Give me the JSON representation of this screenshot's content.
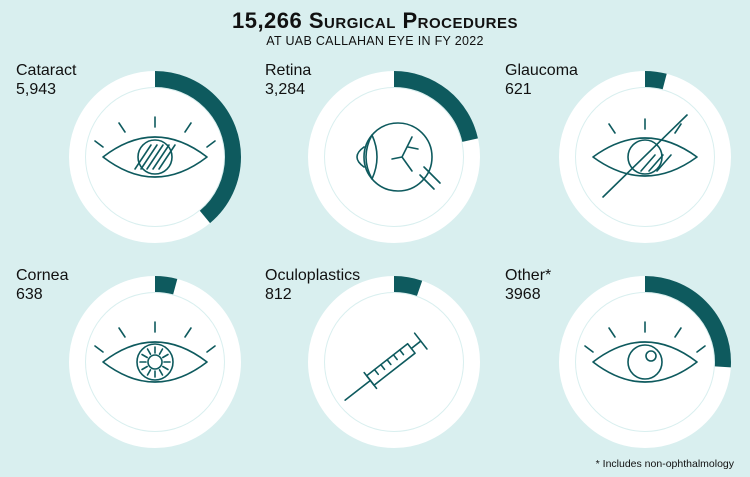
{
  "title": "15,266 Surgical Procedures",
  "subtitle": "AT UAB CALLAHAN EYE IN FY 2022",
  "footnote": "* Includes non-ophthalmology",
  "colors": {
    "background": "#d9efef",
    "track": "#ffffff",
    "fill": "#0e5a5e",
    "circle": "#ffffff"
  },
  "chart_data": {
    "type": "pie",
    "total": 15266,
    "categories": [
      "Cataract",
      "Retina",
      "Glaucoma",
      "Cornea",
      "Oculoplastics",
      "Other*"
    ],
    "values": [
      5943,
      3284,
      621,
      638,
      812,
      3968
    ],
    "value_labels": [
      "5,943",
      "3,284",
      "621",
      "638",
      "812",
      "3968"
    ],
    "icons": [
      "cataract-eye-icon",
      "retina-eyeball-icon",
      "glaucoma-crossed-eye-icon",
      "cornea-eye-icon",
      "syringe-icon",
      "eye-icon"
    ]
  }
}
